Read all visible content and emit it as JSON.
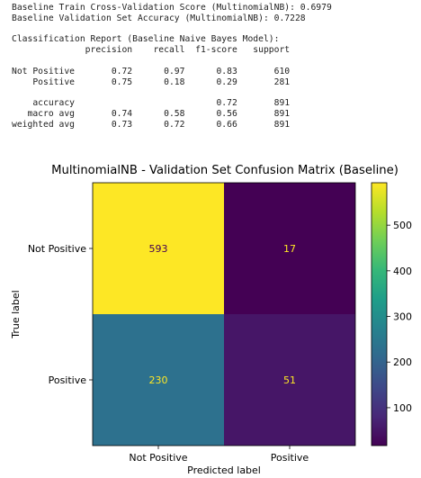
{
  "console": {
    "lines": [
      "Baseline Train Cross-Validation Score (MultinomialNB): 0.6979",
      "Baseline Validation Set Accuracy (MultinomialNB): 0.7228",
      "",
      "Classification Report (Baseline Naive Bayes Model):",
      "              precision    recall  f1-score   support",
      "",
      "Not Positive       0.72      0.97      0.83       610",
      "    Positive       0.75      0.18      0.29       281",
      "",
      "    accuracy                           0.72       891",
      "   macro avg       0.74      0.58      0.56       891",
      "weighted avg       0.73      0.72      0.66       891"
    ]
  },
  "chart_data": {
    "type": "heatmap",
    "title": "MultinomialNB - Validation Set Confusion Matrix (Baseline)",
    "xlabel": "Predicted label",
    "ylabel": "True label",
    "x_categories": [
      "Not Positive",
      "Positive"
    ],
    "y_categories": [
      "Not Positive",
      "Positive"
    ],
    "matrix": [
      [
        593,
        17
      ],
      [
        230,
        51
      ]
    ],
    "colormap": "viridis",
    "colorbar": {
      "range": [
        17,
        593
      ],
      "ticks": [
        100,
        200,
        300,
        400,
        500
      ],
      "tick_labels": [
        "100",
        "200",
        "300",
        "400",
        "500"
      ]
    },
    "grid": false,
    "legend": "colorbar right"
  },
  "colors": {
    "viridis_stops": [
      "#440154",
      "#482878",
      "#3e4989",
      "#31688e",
      "#26828e",
      "#1f9e89",
      "#35b779",
      "#6ece58",
      "#b5de2b",
      "#fde725"
    ],
    "text_on_dark": "#fde725",
    "text_on_light": "#440154"
  }
}
